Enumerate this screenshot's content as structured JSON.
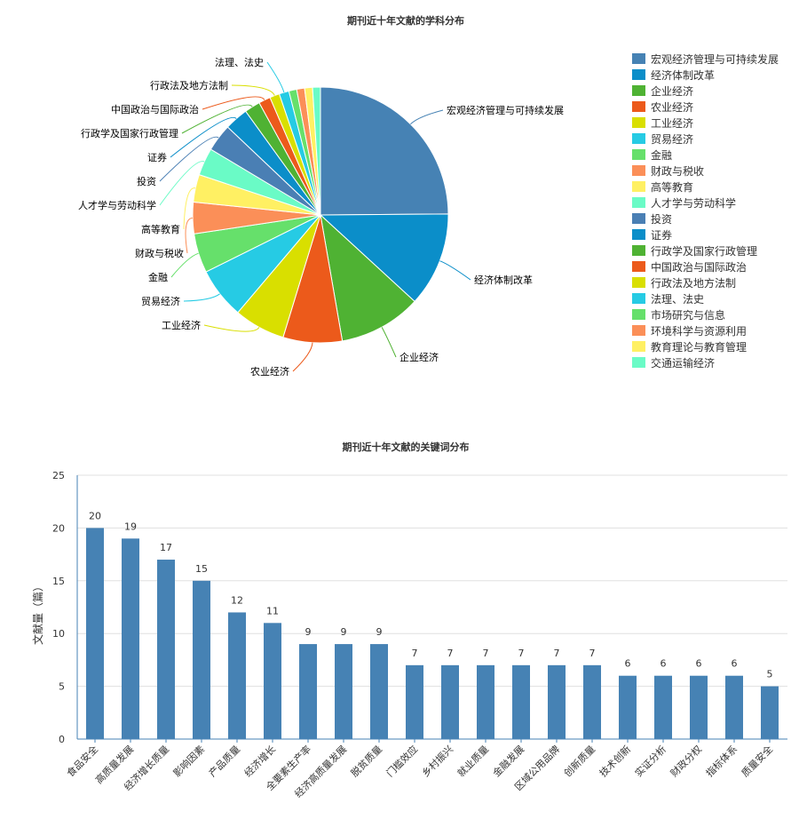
{
  "chart_data": [
    {
      "type": "pie",
      "title": "期刊近十年文献的学科分布",
      "legend": "right",
      "slices": [
        {
          "label": "宏观经济管理与可持续发展",
          "value": 25,
          "color": "#4682b4"
        },
        {
          "label": "经济体制改革",
          "value": 12,
          "color": "#0b8ec9"
        },
        {
          "label": "企业经济",
          "value": 10.5,
          "color": "#4fb233"
        },
        {
          "label": "农业经济",
          "value": 7.5,
          "color": "#ec5a1b"
        },
        {
          "label": "工业经济",
          "value": 6.5,
          "color": "#d9df00"
        },
        {
          "label": "贸易经济",
          "value": 6.5,
          "color": "#26cbe4"
        },
        {
          "label": "金融",
          "value": 5,
          "color": "#66e06b"
        },
        {
          "label": "财政与税收",
          "value": 4,
          "color": "#fb8f58"
        },
        {
          "label": "高等教育",
          "value": 3.5,
          "color": "#fff063"
        },
        {
          "label": "人才学与劳动科学",
          "value": 3.5,
          "color": "#6afbc6"
        },
        {
          "label": "投资",
          "value": 3.5,
          "color": "#4a7fb4"
        },
        {
          "label": "证券",
          "value": 3,
          "color": "#0b8ec9"
        },
        {
          "label": "行政学及国家行政管理",
          "value": 2,
          "color": "#4fb233"
        },
        {
          "label": "中国政治与国际政治",
          "value": 1.5,
          "color": "#ec5a1b"
        },
        {
          "label": "行政法及地方法制",
          "value": 1.25,
          "color": "#d9df00"
        },
        {
          "label": "法理、法史",
          "value": 1.25,
          "color": "#26cbe4"
        },
        {
          "label": "市场研究与信息",
          "value": 1,
          "color": "#66e06b"
        },
        {
          "label": "环境科学与资源利用",
          "value": 1,
          "color": "#fb8f58"
        },
        {
          "label": "教育理论与教育管理",
          "value": 1,
          "color": "#fff063"
        },
        {
          "label": "交通运输经济",
          "value": 1,
          "color": "#6afbc6"
        }
      ],
      "labeled_count": 16
    },
    {
      "type": "bar",
      "title": "期刊近十年文献的关键词分布",
      "ylabel": "文献量（篇）",
      "ylim": [
        0,
        25
      ],
      "yticks": [
        "0",
        "5",
        "10",
        "15",
        "20",
        "25"
      ],
      "bar_color": "#4682b4",
      "categories": [
        "食品安全",
        "高质量发展",
        "经济增长质量",
        "影响因素",
        "产品质量",
        "经济增长",
        "全要素生产率",
        "经济高质量发展",
        "脱贫质量",
        "门槛效应",
        "乡村振兴",
        "就业质量",
        "金融发展",
        "区域公用品牌",
        "创新质量",
        "技术创新",
        "实证分析",
        "财政分权",
        "指标体系",
        "质量安全"
      ],
      "values": [
        20,
        19,
        17,
        15,
        12,
        11,
        9,
        9,
        9,
        7,
        7,
        7,
        7,
        7,
        7,
        6,
        6,
        6,
        6,
        5
      ]
    }
  ]
}
